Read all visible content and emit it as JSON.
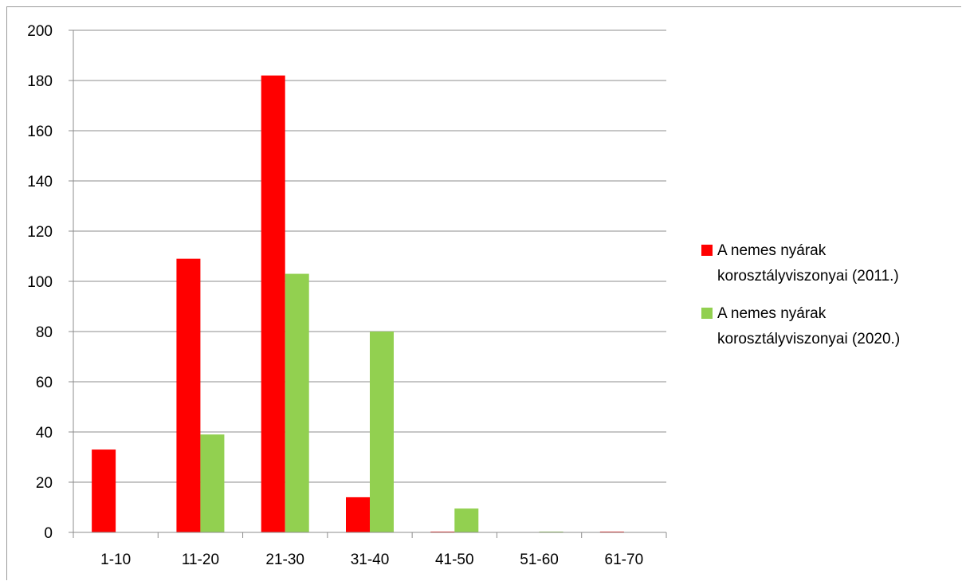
{
  "chart_data": {
    "type": "bar",
    "categories": [
      "1-10",
      "11-20",
      "21-30",
      "31-40",
      "41-50",
      "51-60",
      "61-70"
    ],
    "series": [
      {
        "name": "A nemes nyárak korosztályviszonyai (2011.)",
        "legend_lines": [
          "A nemes nyárak",
          "korosztályviszonyai (2011.)"
        ],
        "color": "#ff0000",
        "values": [
          33,
          109,
          182,
          14,
          0,
          0,
          0
        ]
      },
      {
        "name": "A nemes nyárak korosztályviszonyai (2020.)",
        "legend_lines": [
          "A nemes nyárak",
          "korosztályviszonyai (2020.)"
        ],
        "color": "#92d050",
        "values": [
          0,
          39,
          103,
          80,
          9.5,
          0,
          0
        ]
      }
    ],
    "yticks": [
      "0",
      "20",
      "40",
      "60",
      "80",
      "100",
      "120",
      "140",
      "160",
      "180",
      "200"
    ],
    "ylim": [
      0,
      200
    ],
    "title": "",
    "xlabel": "",
    "ylabel": "",
    "grid": true,
    "legend_position": "right"
  }
}
